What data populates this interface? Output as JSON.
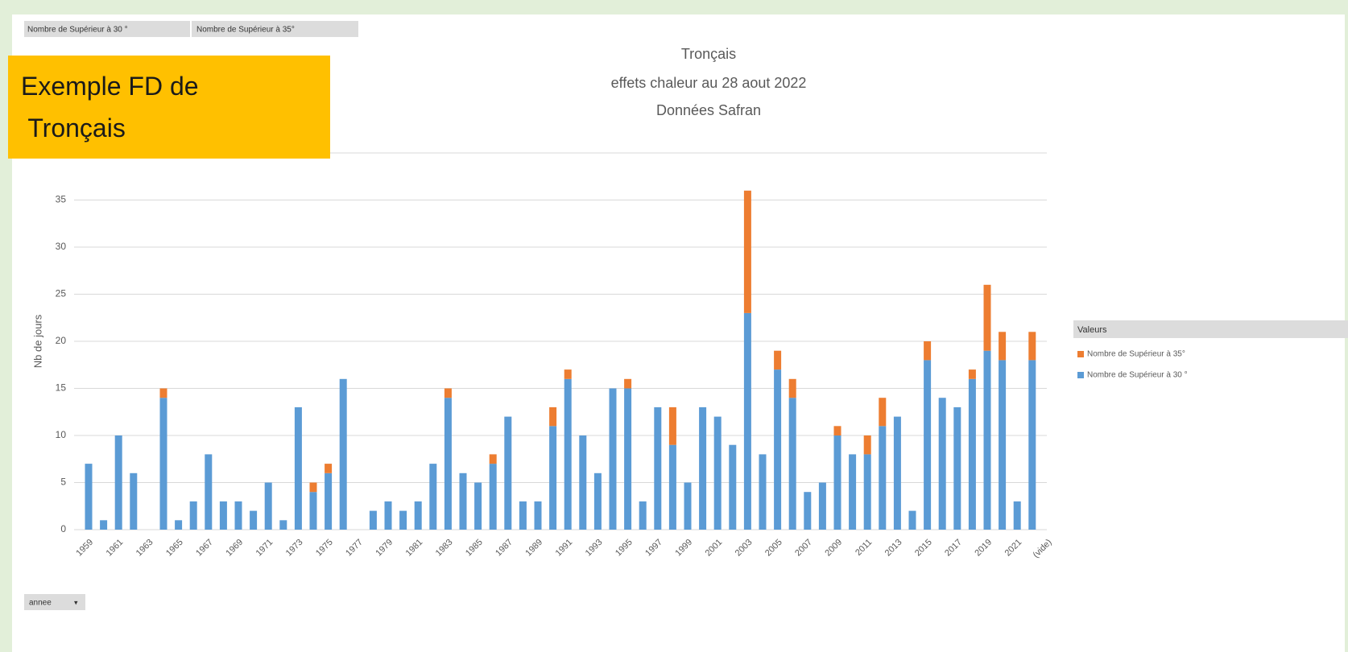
{
  "chart_data": {
    "type": "stacked_bar",
    "title": "Tronçais",
    "subtitle": [
      "effets chaleur au 28 aout 2022",
      "Données Safran"
    ],
    "annotation": "Exemple FD de Tronçais",
    "field_buttons": [
      "Nombre de Supérieur à 30 °",
      "Nombre de Supérieur à 35°"
    ],
    "x_field_button": "annee",
    "y_label": "Nb de jours",
    "legend_title": "Valeurs",
    "legend": "right",
    "grid": true,
    "ylim": [
      0,
      40
    ],
    "yticks": [
      0,
      5,
      10,
      15,
      20,
      25,
      30,
      35,
      40
    ],
    "categories": [
      "1959",
      null,
      "1961",
      null,
      "1963",
      null,
      "1965",
      null,
      "1967",
      null,
      "1969",
      null,
      "1971",
      null,
      "1973",
      null,
      "1975",
      null,
      "1977",
      null,
      "1979",
      null,
      "1981",
      null,
      "1983",
      null,
      "1985",
      null,
      "1987",
      null,
      "1989",
      null,
      "1991",
      null,
      "1993",
      null,
      "1995",
      null,
      "1997",
      null,
      "1999",
      null,
      "2001",
      null,
      "2003",
      null,
      "2005",
      null,
      "2007",
      null,
      "2009",
      null,
      "2011",
      null,
      "2013",
      null,
      "2015",
      null,
      "2017",
      null,
      "2019",
      null,
      "2021",
      null,
      "(vide)"
    ],
    "series": [
      {
        "name": "Nombre de Supérieur à 30 °",
        "color": "#5b9bd5",
        "values": [
          7,
          1,
          10,
          6,
          null,
          14,
          1,
          3,
          8,
          3,
          3,
          2,
          5,
          1,
          13,
          4,
          6,
          16,
          null,
          2,
          3,
          2,
          3,
          7,
          14,
          6,
          5,
          7,
          12,
          3,
          3,
          11,
          16,
          10,
          6,
          15,
          15,
          3,
          13,
          9,
          5,
          13,
          12,
          9,
          23,
          8,
          17,
          14,
          4,
          5,
          10,
          8,
          8,
          11,
          12,
          2,
          18,
          14,
          13,
          16,
          19,
          18,
          3,
          18,
          null
        ]
      },
      {
        "name": "Nombre de Supérieur à 35°",
        "color": "#ed7d31",
        "values": [
          null,
          null,
          null,
          null,
          null,
          1,
          null,
          null,
          null,
          null,
          null,
          null,
          null,
          null,
          null,
          1,
          1,
          null,
          null,
          null,
          null,
          null,
          null,
          null,
          1,
          null,
          null,
          1,
          null,
          null,
          null,
          2,
          1,
          null,
          null,
          null,
          1,
          null,
          null,
          4,
          null,
          null,
          null,
          null,
          13,
          null,
          2,
          2,
          null,
          null,
          1,
          null,
          2,
          3,
          null,
          null,
          2,
          null,
          null,
          1,
          7,
          3,
          null,
          3,
          null
        ]
      }
    ]
  }
}
